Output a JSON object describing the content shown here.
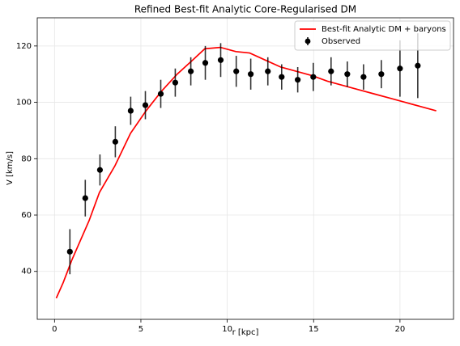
{
  "chart_data": {
    "type": "line",
    "title": "Refined Best-fit Analytic Core-Regularised DM",
    "xlabel": "r [kpc]",
    "ylabel": "V [km/s]",
    "xlim": [
      -1.0,
      23.1
    ],
    "ylim": [
      23,
      130
    ],
    "xticks": [
      0,
      5,
      10,
      15,
      20
    ],
    "yticks": [
      40,
      60,
      80,
      100,
      120
    ],
    "grid": true,
    "legend": "upper right",
    "series": [
      {
        "name": "Best-fit Analytic DM + baryons",
        "type": "line",
        "color": "#ff0000",
        "x": [
          0.1,
          0.5,
          1.0,
          2.0,
          2.6,
          3.5,
          4.4,
          5.3,
          6.2,
          7.1,
          8.0,
          8.7,
          9.6,
          10.5,
          11.3,
          12.2,
          13.1,
          14.0,
          14.9,
          15.8,
          16.7,
          17.6,
          18.5,
          19.4,
          20.3,
          21.2,
          22.1
        ],
        "values": [
          30.5,
          36,
          44,
          58,
          68,
          77.5,
          89,
          97,
          104,
          110,
          115,
          119,
          119.5,
          118,
          117.5,
          115,
          112.5,
          111,
          109.5,
          107.5,
          106,
          104.5,
          103,
          101.5,
          100,
          98.5,
          97
        ]
      },
      {
        "name": "Observed",
        "type": "errorbar",
        "color": "#000000",
        "x": [
          0.89,
          1.78,
          2.63,
          3.52,
          4.41,
          5.26,
          6.15,
          6.99,
          7.89,
          8.73,
          9.62,
          10.52,
          11.36,
          12.35,
          13.15,
          14.08,
          14.98,
          16.01,
          16.95,
          17.89,
          18.92,
          20.0,
          21.03
        ],
        "values": [
          47,
          66,
          76,
          86,
          97,
          99,
          103,
          107,
          111,
          114,
          115,
          111,
          110,
          111,
          109,
          108,
          109,
          111,
          110,
          109,
          110,
          112,
          113
        ],
        "errors": [
          8,
          6.5,
          5.5,
          5.5,
          5,
          5,
          5,
          5,
          5,
          6,
          6,
          5.5,
          5.5,
          5,
          4.5,
          4.5,
          5,
          5,
          4.5,
          4.5,
          5,
          10,
          11.5
        ]
      }
    ]
  }
}
